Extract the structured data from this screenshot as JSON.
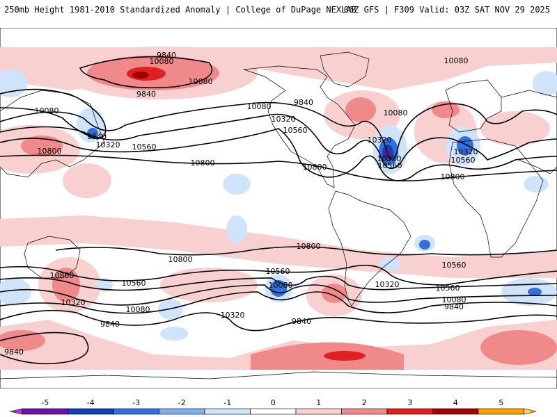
{
  "header": {
    "left": "250mb Height 1981-2010 Standardized Anomaly | College of DuPage NEXLAB",
    "right": "06Z GFS | F309 Valid: 03Z SAT NOV 29 2025"
  },
  "colorbar": {
    "ticks": [
      "-5",
      "-4",
      "-3",
      "-2",
      "-1",
      "0",
      "1",
      "2",
      "3",
      "4",
      "5"
    ],
    "colors": [
      "#b030e0",
      "#7010a0",
      "#1040b0",
      "#3070e0",
      "#80b0f0",
      "#cfe4fa",
      "#ffffff",
      "#f9d0d0",
      "#f08a8a",
      "#e02020",
      "#a00000",
      "#ffa000",
      "#ffd040"
    ]
  },
  "map": {
    "contour_labels": [
      "9840",
      "10080",
      "9840",
      "10080",
      "9840",
      "10320",
      "10560",
      "10800",
      "10080",
      "10320",
      "10560",
      "10800",
      "10800",
      "9840",
      "10080",
      "10320",
      "10560",
      "10080",
      "10320",
      "10560",
      "10800",
      "10800",
      "10800",
      "10560",
      "10080",
      "10560",
      "10560",
      "10320",
      "10080",
      "10320",
      "10080",
      "9840",
      "9840",
      "9840",
      "9840",
      "10800",
      "10320",
      "10080",
      "10560",
      "10320"
    ],
    "colors": {
      "background": "#ffffff",
      "pos_anomaly_light": "#f9d0d0",
      "pos_anomaly_mid": "#f08a8a",
      "pos_anomaly_strong": "#e02020",
      "pos_anomaly_max": "#a00000",
      "neg_anomaly_light": "#cfe4fa",
      "neg_anomaly_mid": "#3070e0",
      "neg_anomaly_strong": "#1040b0",
      "neg_anomaly_max": "#7010a0",
      "contour": "#000000",
      "coast": "#000000"
    }
  }
}
